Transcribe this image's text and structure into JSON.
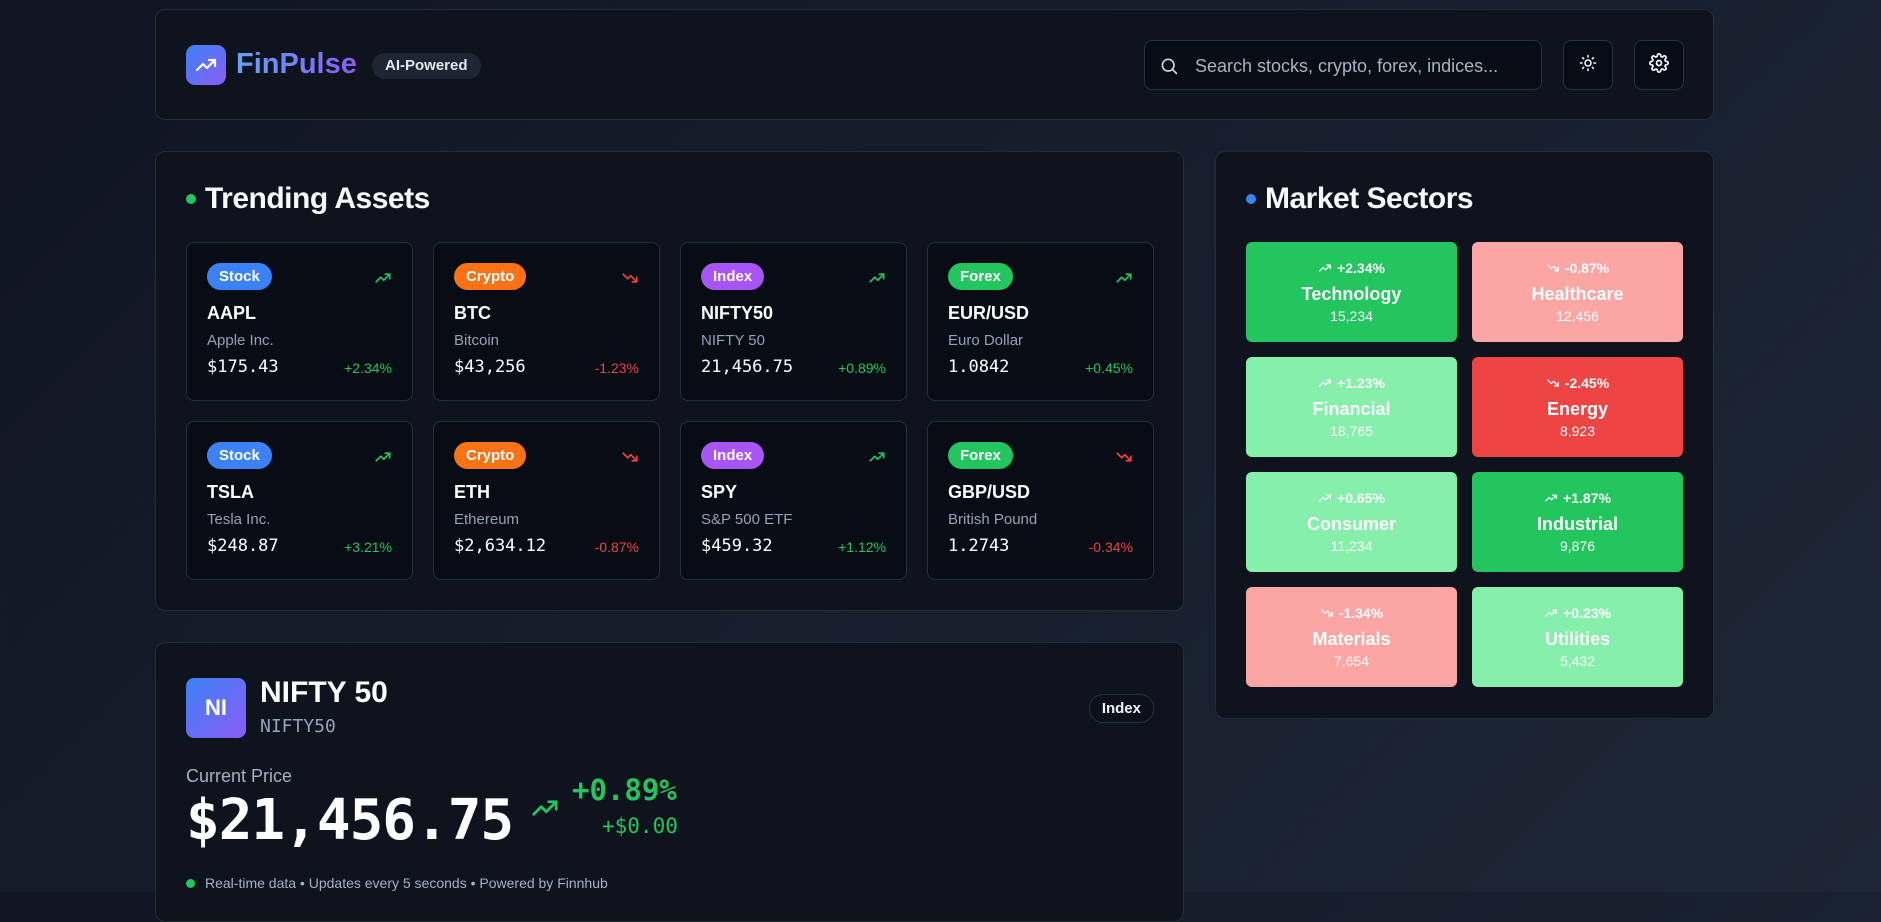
{
  "header": {
    "app_name": "FinPulse",
    "ai_badge": "AI-Powered",
    "search_placeholder": "Search stocks, crypto, forex, indices...",
    "theme_icon": "sun-icon",
    "settings_icon": "gear-icon"
  },
  "trending": {
    "title": "Trending Assets",
    "assets": [
      {
        "type": "Stock",
        "symbol": "AAPL",
        "name": "Apple Inc.",
        "price": "$175.43",
        "change": "+2.34%",
        "direction": "up"
      },
      {
        "type": "Crypto",
        "symbol": "BTC",
        "name": "Bitcoin",
        "price": "$43,256",
        "change": "-1.23%",
        "direction": "down"
      },
      {
        "type": "Index",
        "symbol": "NIFTY50",
        "name": "NIFTY 50",
        "price": "21,456.75",
        "change": "+0.89%",
        "direction": "up"
      },
      {
        "type": "Forex",
        "symbol": "EUR/USD",
        "name": "Euro Dollar",
        "price": "1.0842",
        "change": "+0.45%",
        "direction": "up"
      },
      {
        "type": "Stock",
        "symbol": "TSLA",
        "name": "Tesla Inc.",
        "price": "$248.87",
        "change": "+3.21%",
        "direction": "up"
      },
      {
        "type": "Crypto",
        "symbol": "ETH",
        "name": "Ethereum",
        "price": "$2,634.12",
        "change": "-0.87%",
        "direction": "down"
      },
      {
        "type": "Index",
        "symbol": "SPY",
        "name": "S&P 500 ETF",
        "price": "$459.32",
        "change": "+1.12%",
        "direction": "up"
      },
      {
        "type": "Forex",
        "symbol": "GBP/USD",
        "name": "British Pound",
        "price": "1.2743",
        "change": "-0.34%",
        "direction": "down"
      }
    ]
  },
  "sectors": {
    "title": "Market Sectors",
    "items": [
      {
        "change": "+2.34%",
        "name": "Technology",
        "count": "15,234",
        "color": "#22c55e"
      },
      {
        "change": "-0.87%",
        "name": "Healthcare",
        "count": "12,456",
        "color": "#fca5a5"
      },
      {
        "change": "+1.23%",
        "name": "Financial",
        "count": "18,765",
        "color": "#86efac"
      },
      {
        "change": "-2.45%",
        "name": "Energy",
        "count": "8,923",
        "color": "#ef4444"
      },
      {
        "change": "+0.65%",
        "name": "Consumer",
        "count": "11,234",
        "color": "#86efac"
      },
      {
        "change": "+1.87%",
        "name": "Industrial",
        "count": "9,876",
        "color": "#22c55e"
      },
      {
        "change": "-1.34%",
        "name": "Materials",
        "count": "7,654",
        "color": "#fca5a5"
      },
      {
        "change": "+0.23%",
        "name": "Utilities",
        "count": "5,432",
        "color": "#86efac"
      }
    ]
  },
  "detail": {
    "initials": "NI",
    "title": "NIFTY 50",
    "symbol": "NIFTY50",
    "type": "Index",
    "price_label": "Current Price",
    "price": "$21,456.75",
    "change_pct": "+0.89%",
    "change_abs": "+$0.00",
    "realtime_note": "Real-time data • Updates every 5 seconds • Powered by Finnhub"
  },
  "colors": {
    "up": "#22c55e",
    "down": "#ef4444",
    "Stock": "#3b82f6",
    "Crypto": "#f97316",
    "Index": "#a855f7",
    "Forex": "#22c55e"
  }
}
